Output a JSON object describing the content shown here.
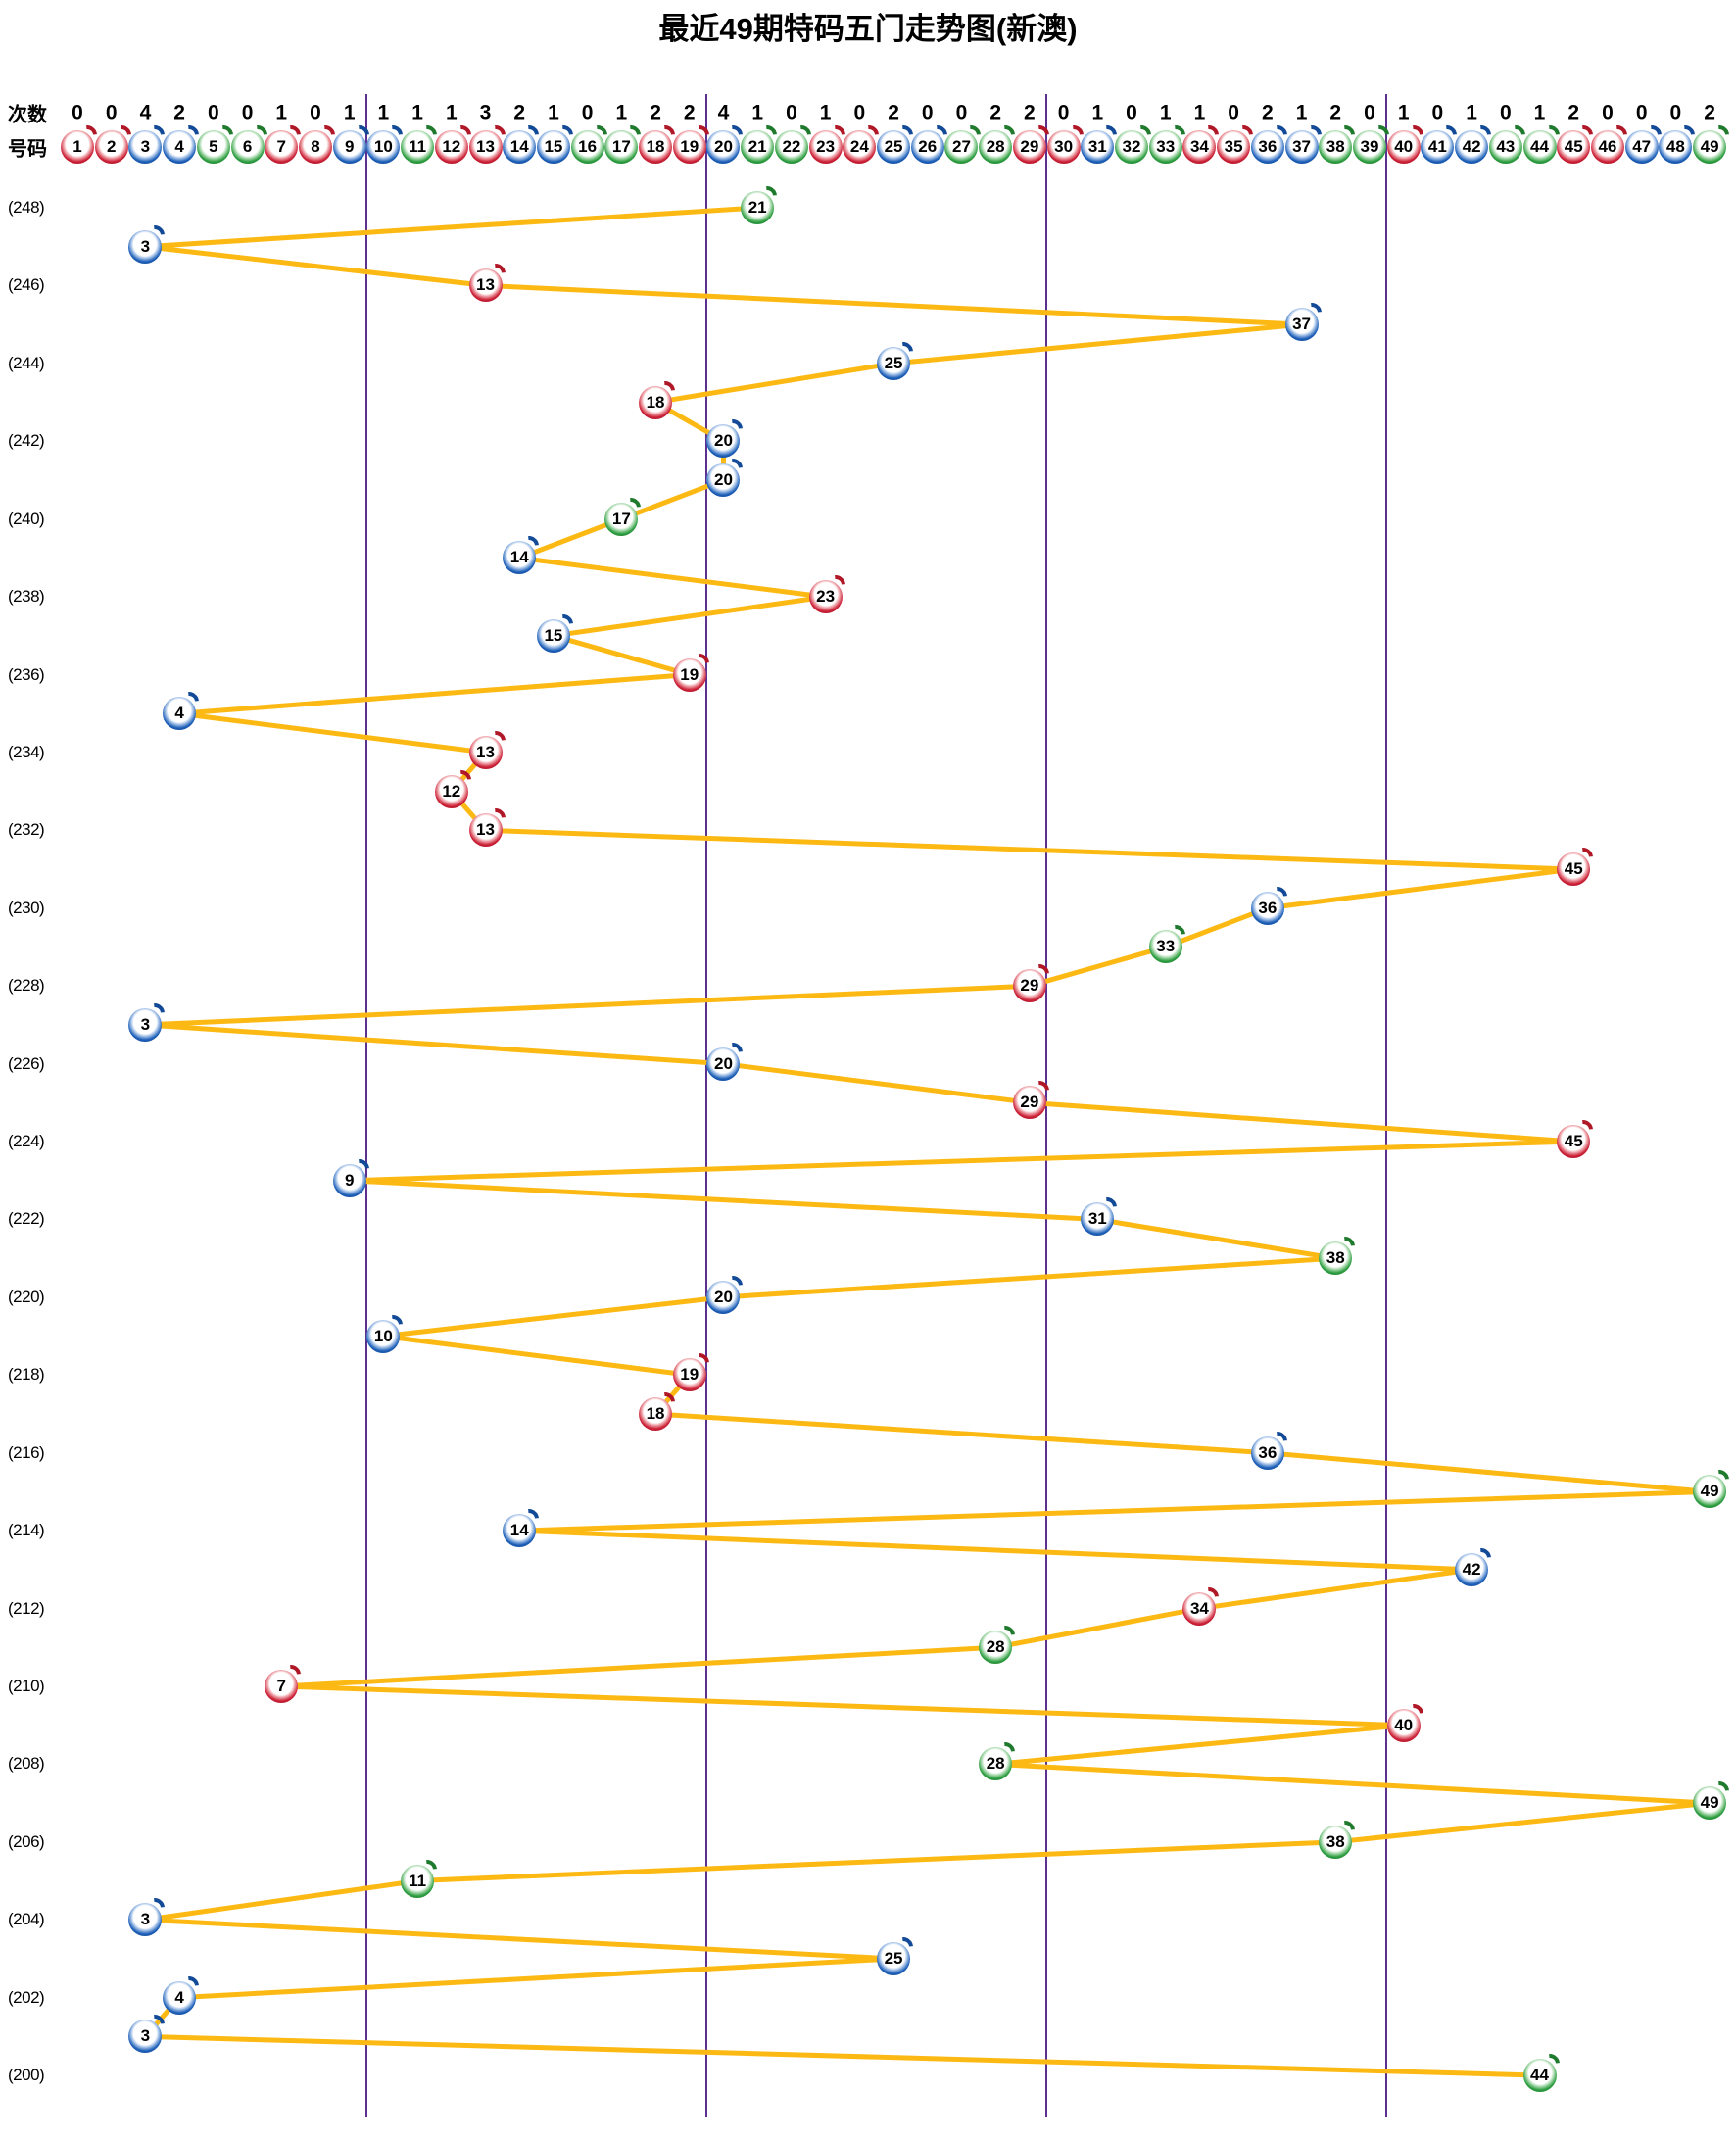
{
  "title": "最近49期特码五门走势图(新澳)",
  "header": {
    "counts_label": "次数",
    "numbers_label": "号码",
    "counts": [
      0,
      0,
      4,
      2,
      0,
      0,
      1,
      0,
      1,
      1,
      1,
      1,
      3,
      2,
      1,
      0,
      1,
      2,
      2,
      4,
      1,
      0,
      1,
      0,
      2,
      0,
      0,
      2,
      2,
      0,
      1,
      0,
      1,
      1,
      0,
      2,
      1,
      2,
      0,
      1,
      0,
      1,
      0,
      1,
      2,
      0,
      0,
      0,
      2
    ]
  },
  "colors": {
    "red_ball": "#CC2036",
    "blue_ball": "#1D5FB8",
    "green_ball": "#2E9E41",
    "trend_line": "#FDB913",
    "section_divider": "#5B3090",
    "text": "#000000"
  },
  "ball_color_groups": {
    "red": [
      1,
      2,
      7,
      8,
      12,
      13,
      18,
      19,
      23,
      24,
      29,
      30,
      34,
      35,
      40,
      45,
      46
    ],
    "blue": [
      3,
      4,
      9,
      10,
      14,
      15,
      20,
      25,
      26,
      31,
      36,
      37,
      41,
      42,
      47,
      48
    ],
    "green": [
      5,
      6,
      11,
      16,
      17,
      21,
      22,
      27,
      28,
      32,
      33,
      38,
      39,
      43,
      44,
      49
    ]
  },
  "chart_data": {
    "type": "line",
    "title": "最近49期特码五门走势图(新澳)",
    "xlabel": "号码",
    "ylabel": "期号",
    "x_range": [
      1,
      49
    ],
    "period_range": [
      248,
      200
    ],
    "period_label_step": 2,
    "grid": "five-gate vertical dividers",
    "sections": [
      [
        1,
        9
      ],
      [
        10,
        19
      ],
      [
        20,
        29
      ],
      [
        30,
        39
      ],
      [
        40,
        49
      ]
    ],
    "number_counts": [
      0,
      0,
      4,
      2,
      0,
      0,
      1,
      0,
      1,
      1,
      1,
      1,
      3,
      2,
      1,
      0,
      1,
      2,
      2,
      4,
      1,
      0,
      1,
      0,
      2,
      0,
      0,
      2,
      2,
      0,
      1,
      0,
      1,
      1,
      0,
      2,
      1,
      2,
      0,
      1,
      0,
      1,
      0,
      1,
      2,
      0,
      0,
      0,
      2
    ],
    "rows": [
      {
        "period": 248,
        "number": 21
      },
      {
        "period": 247,
        "number": 3
      },
      {
        "period": 246,
        "number": 13
      },
      {
        "period": 245,
        "number": 37
      },
      {
        "period": 244,
        "number": 25
      },
      {
        "period": 243,
        "number": 18
      },
      {
        "period": 242,
        "number": 20
      },
      {
        "period": 241,
        "number": 20
      },
      {
        "period": 240,
        "number": 17
      },
      {
        "period": 239,
        "number": 14
      },
      {
        "period": 238,
        "number": 23
      },
      {
        "period": 237,
        "number": 15
      },
      {
        "period": 236,
        "number": 19
      },
      {
        "period": 235,
        "number": 4
      },
      {
        "period": 234,
        "number": 13
      },
      {
        "period": 233,
        "number": 12
      },
      {
        "period": 232,
        "number": 13
      },
      {
        "period": 231,
        "number": 45
      },
      {
        "period": 230,
        "number": 36
      },
      {
        "period": 229,
        "number": 33
      },
      {
        "period": 228,
        "number": 29
      },
      {
        "period": 227,
        "number": 3
      },
      {
        "period": 226,
        "number": 20
      },
      {
        "period": 225,
        "number": 29
      },
      {
        "period": 224,
        "number": 45
      },
      {
        "period": 223,
        "number": 9
      },
      {
        "period": 222,
        "number": 31
      },
      {
        "period": 221,
        "number": 38
      },
      {
        "period": 220,
        "number": 20
      },
      {
        "period": 219,
        "number": 10
      },
      {
        "period": 218,
        "number": 19
      },
      {
        "period": 217,
        "number": 18
      },
      {
        "period": 216,
        "number": 36
      },
      {
        "period": 215,
        "number": 49
      },
      {
        "period": 214,
        "number": 14
      },
      {
        "period": 213,
        "number": 42
      },
      {
        "period": 212,
        "number": 34
      },
      {
        "period": 211,
        "number": 28
      },
      {
        "period": 210,
        "number": 7
      },
      {
        "period": 209,
        "number": 40
      },
      {
        "period": 208,
        "number": 28
      },
      {
        "period": 207,
        "number": 49
      },
      {
        "period": 206,
        "number": 38
      },
      {
        "period": 205,
        "number": 11
      },
      {
        "period": 204,
        "number": 3
      },
      {
        "period": 203,
        "number": 25
      },
      {
        "period": 202,
        "number": 4
      },
      {
        "period": 201,
        "number": 3
      },
      {
        "period": 200,
        "number": 44
      }
    ]
  }
}
